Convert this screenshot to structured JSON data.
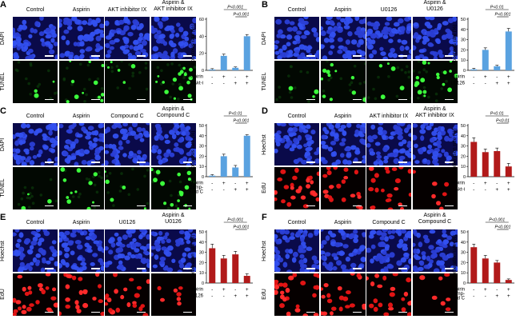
{
  "panels": [
    {
      "letter": "A",
      "conditions": [
        "Control",
        "Aspirin",
        "AKT inhibitor IX",
        "Aspirin &\nAKT inhibitor IX"
      ],
      "rows": [
        {
          "label": "DAPI",
          "stain": "blue"
        },
        {
          "label": "TUNEL",
          "stain": "green"
        }
      ],
      "chart_data": {
        "type": "bar",
        "color": "#5aa2e0",
        "ylabel": "Apoptosis rate (%)",
        "ylim": [
          0,
          60
        ],
        "yticks": [
          0,
          20,
          40,
          60
        ],
        "values": [
          1,
          17,
          3,
          40
        ],
        "errors": [
          1,
          2,
          1,
          2
        ],
        "factors": [
          {
            "name": "Aspirin",
            "signs": [
              "-",
              "+",
              "-",
              "+"
            ]
          },
          {
            "name": "Akt-i",
            "signs": [
              "-",
              "-",
              "+",
              "+"
            ]
          }
        ],
        "significance": [
          {
            "label": "P<0.001",
            "from": 1,
            "to": 3
          },
          {
            "label": "P<0.001",
            "from": 2,
            "to": 3
          }
        ]
      }
    },
    {
      "letter": "B",
      "conditions": [
        "Control",
        "Aspirin",
        "U0126",
        "Aspirin &\nU0126"
      ],
      "rows": [
        {
          "label": "DAPI",
          "stain": "blue"
        },
        {
          "label": "TUNEL",
          "stain": "green"
        }
      ],
      "chart_data": {
        "type": "bar",
        "color": "#5aa2e0",
        "ylabel": "Apoptosis rate (%)",
        "ylim": [
          0,
          50
        ],
        "yticks": [
          0,
          10,
          20,
          30,
          40,
          50
        ],
        "values": [
          1,
          20,
          4,
          38
        ],
        "errors": [
          1,
          2,
          1,
          3
        ],
        "factors": [
          {
            "name": "Aspirin",
            "signs": [
              "-",
              "+",
              "-",
              "+"
            ]
          },
          {
            "name": "U0126",
            "signs": [
              "-",
              "-",
              "+",
              "+"
            ]
          }
        ],
        "significance": [
          {
            "label": "P<0.01",
            "from": 1,
            "to": 3
          },
          {
            "label": "P<0.001",
            "from": 2,
            "to": 3
          }
        ]
      }
    },
    {
      "letter": "C",
      "conditions": [
        "Control",
        "Aspirin",
        "Compound C",
        "Aspirin &\nCompound C"
      ],
      "rows": [
        {
          "label": "DAPI",
          "stain": "blue"
        },
        {
          "label": "TUNEL",
          "stain": "green"
        }
      ],
      "chart_data": {
        "type": "bar",
        "color": "#5aa2e0",
        "ylabel": "Apoptosis rate (%)",
        "ylim": [
          0,
          50
        ],
        "yticks": [
          0,
          10,
          20,
          30,
          40,
          50
        ],
        "values": [
          1,
          20,
          9,
          40
        ],
        "errors": [
          1,
          2,
          2,
          1
        ],
        "factors": [
          {
            "name": "Aspirin",
            "signs": [
              "-",
              "+",
              "-",
              "+"
            ]
          },
          {
            "name": "Comp-\nound C",
            "signs": [
              "-",
              "-",
              "+",
              "+"
            ]
          }
        ],
        "significance": [
          {
            "label": "P<0.01",
            "from": 1,
            "to": 3
          },
          {
            "label": "P<0.001",
            "from": 2,
            "to": 3
          }
        ]
      }
    },
    {
      "letter": "D",
      "conditions": [
        "Control",
        "Aspirin",
        "AKT inhibitor IX",
        "Aspirin &\nAKT inhibitor IX"
      ],
      "rows": [
        {
          "label": "Hoechst",
          "stain": "blue"
        },
        {
          "label": "EdU",
          "stain": "red"
        }
      ],
      "chart_data": {
        "type": "bar",
        "color": "#b11a1a",
        "ylabel": "Proliferation rate (%)",
        "ylim": [
          0,
          50
        ],
        "yticks": [
          0,
          10,
          20,
          30,
          40,
          50
        ],
        "values": [
          34,
          24,
          25,
          10
        ],
        "errors": [
          4,
          3,
          3,
          3
        ],
        "factors": [
          {
            "name": "Aspirin",
            "signs": [
              "-",
              "+",
              "-",
              "+"
            ]
          },
          {
            "name": "Akt-i",
            "signs": [
              "-",
              "-",
              "+",
              "+"
            ]
          }
        ],
        "significance": [
          {
            "label": "P<0.01",
            "from": 1,
            "to": 3
          },
          {
            "label": "P<0.01",
            "from": 2,
            "to": 3
          }
        ]
      }
    },
    {
      "letter": "E",
      "conditions": [
        "Control",
        "Aspirin",
        "U0126",
        "Aspirin &\nU0126"
      ],
      "rows": [
        {
          "label": "Hoechst",
          "stain": "blue"
        },
        {
          "label": "EdU",
          "stain": "red"
        }
      ],
      "chart_data": {
        "type": "bar",
        "color": "#b11a1a",
        "ylabel": "Proliferation rate (%)",
        "ylim": [
          0,
          50
        ],
        "yticks": [
          0,
          10,
          20,
          30,
          40,
          50
        ],
        "values": [
          34,
          24,
          28,
          7
        ],
        "errors": [
          4,
          3,
          3,
          2
        ],
        "factors": [
          {
            "name": "Aspirin",
            "signs": [
              "-",
              "+",
              "-",
              "+"
            ]
          },
          {
            "name": "U0126",
            "signs": [
              "-",
              "-",
              "+",
              "+"
            ]
          }
        ],
        "significance": [
          {
            "label": "P<0.001",
            "from": 1,
            "to": 3
          },
          {
            "label": "P<0.001",
            "from": 2,
            "to": 3
          }
        ]
      }
    },
    {
      "letter": "F",
      "conditions": [
        "Control",
        "Aspirin",
        "Compound C",
        "Aspirin &\nCompound C"
      ],
      "rows": [
        {
          "label": "Hoechst",
          "stain": "blue"
        },
        {
          "label": "EdU",
          "stain": "red"
        }
      ],
      "chart_data": {
        "type": "bar",
        "color": "#b11a1a",
        "ylabel": "Proliferation rate (%)",
        "ylim": [
          0,
          50
        ],
        "yticks": [
          0,
          10,
          20,
          30,
          40,
          50
        ],
        "values": [
          35,
          24,
          20,
          3
        ],
        "errors": [
          3,
          3,
          2,
          1
        ],
        "factors": [
          {
            "name": "Aspirin",
            "signs": [
              "-",
              "+",
              "-",
              "+"
            ]
          },
          {
            "name": "Comp-\nound C",
            "signs": [
              "-",
              "-",
              "+",
              "+"
            ]
          }
        ],
        "significance": [
          {
            "label": "P<0.001",
            "from": 1,
            "to": 3
          },
          {
            "label": "P<0.001",
            "from": 2,
            "to": 3
          }
        ]
      }
    }
  ]
}
